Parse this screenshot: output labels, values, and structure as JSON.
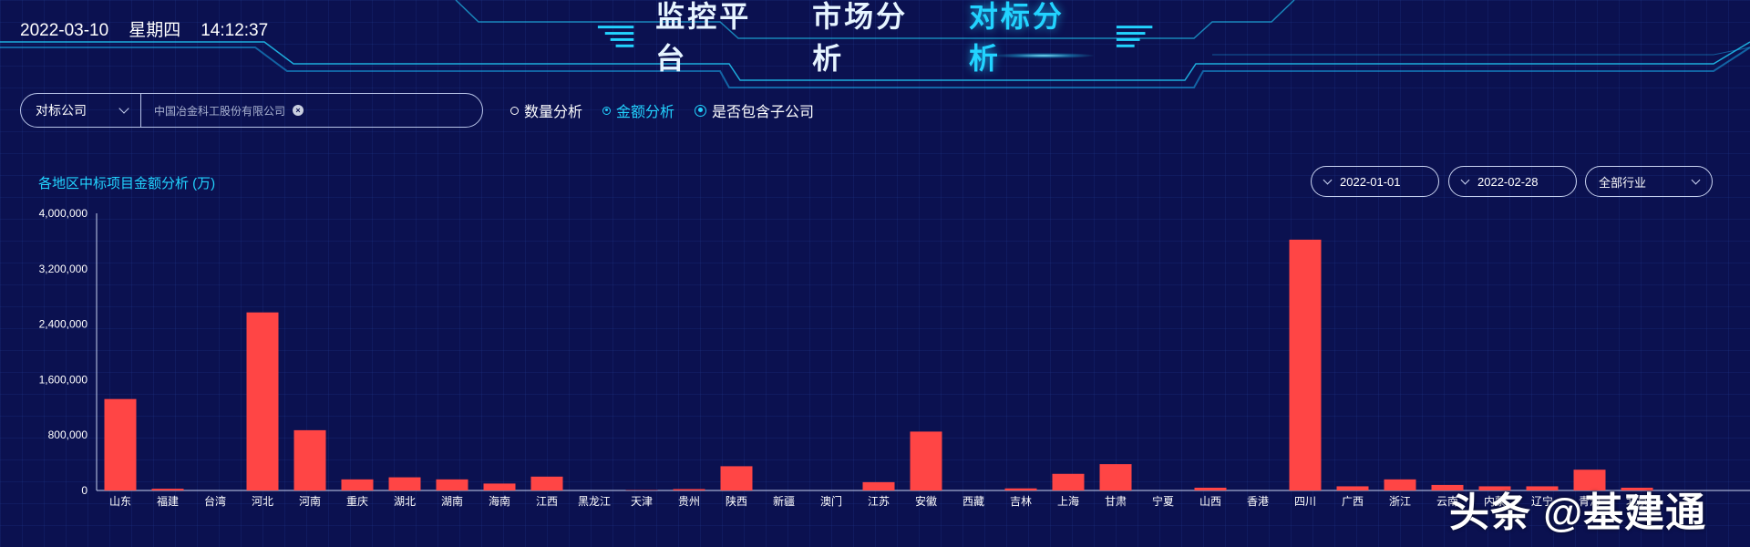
{
  "header": {
    "date": "2022-03-10",
    "weekday": "星期四",
    "time": "14:12:37",
    "tabs": [
      {
        "label": "监控平台",
        "active": false
      },
      {
        "label": "市场分析",
        "active": false
      },
      {
        "label": "对标分析",
        "active": true
      }
    ]
  },
  "filter": {
    "select_label": "对标公司",
    "value": "中国冶金科工股份有限公司"
  },
  "options": {
    "count_label": "数量分析",
    "amount_label": "金额分析",
    "include_sub_label": "是否包含子公司",
    "selected": "金额分析"
  },
  "controls": {
    "start_date": "2022-01-01",
    "end_date": "2022-02-28",
    "industry": "全部行业"
  },
  "watermark": "头条 @基建通",
  "colors": {
    "bar": "#ff4545",
    "accent": "#22d3ff",
    "background": "#0b1150"
  },
  "chart_data": {
    "type": "bar",
    "title": "各地区中标项目金额分析 (万)",
    "categories": [
      "山东",
      "福建",
      "台湾",
      "河北",
      "河南",
      "重庆",
      "湖北",
      "湖南",
      "海南",
      "江西",
      "黑龙江",
      "天津",
      "贵州",
      "陕西",
      "新疆",
      "澳门",
      "江苏",
      "安徽",
      "西藏",
      "吉林",
      "上海",
      "甘肃",
      "宁夏",
      "山西",
      "香港",
      "四川",
      "广西",
      "浙江",
      "云南",
      "内蒙",
      "辽宁",
      "青海",
      "北京"
    ],
    "values": [
      1320000,
      25000,
      0,
      2570000,
      870000,
      160000,
      190000,
      160000,
      100000,
      200000,
      0,
      5000,
      20000,
      350000,
      0,
      0,
      120000,
      850000,
      0,
      30000,
      240000,
      380000,
      0,
      40000,
      0,
      3620000,
      60000,
      160000,
      80000,
      60000,
      60000,
      300000,
      40000
    ],
    "ylim": [
      0,
      4000000
    ],
    "yticks": [
      "0",
      "800,000",
      "1,600,000",
      "2,400,000",
      "3,200,000",
      "4,000,000"
    ],
    "ytick_values": [
      0,
      800000,
      1600000,
      2400000,
      3200000,
      4000000
    ],
    "grid": false
  }
}
